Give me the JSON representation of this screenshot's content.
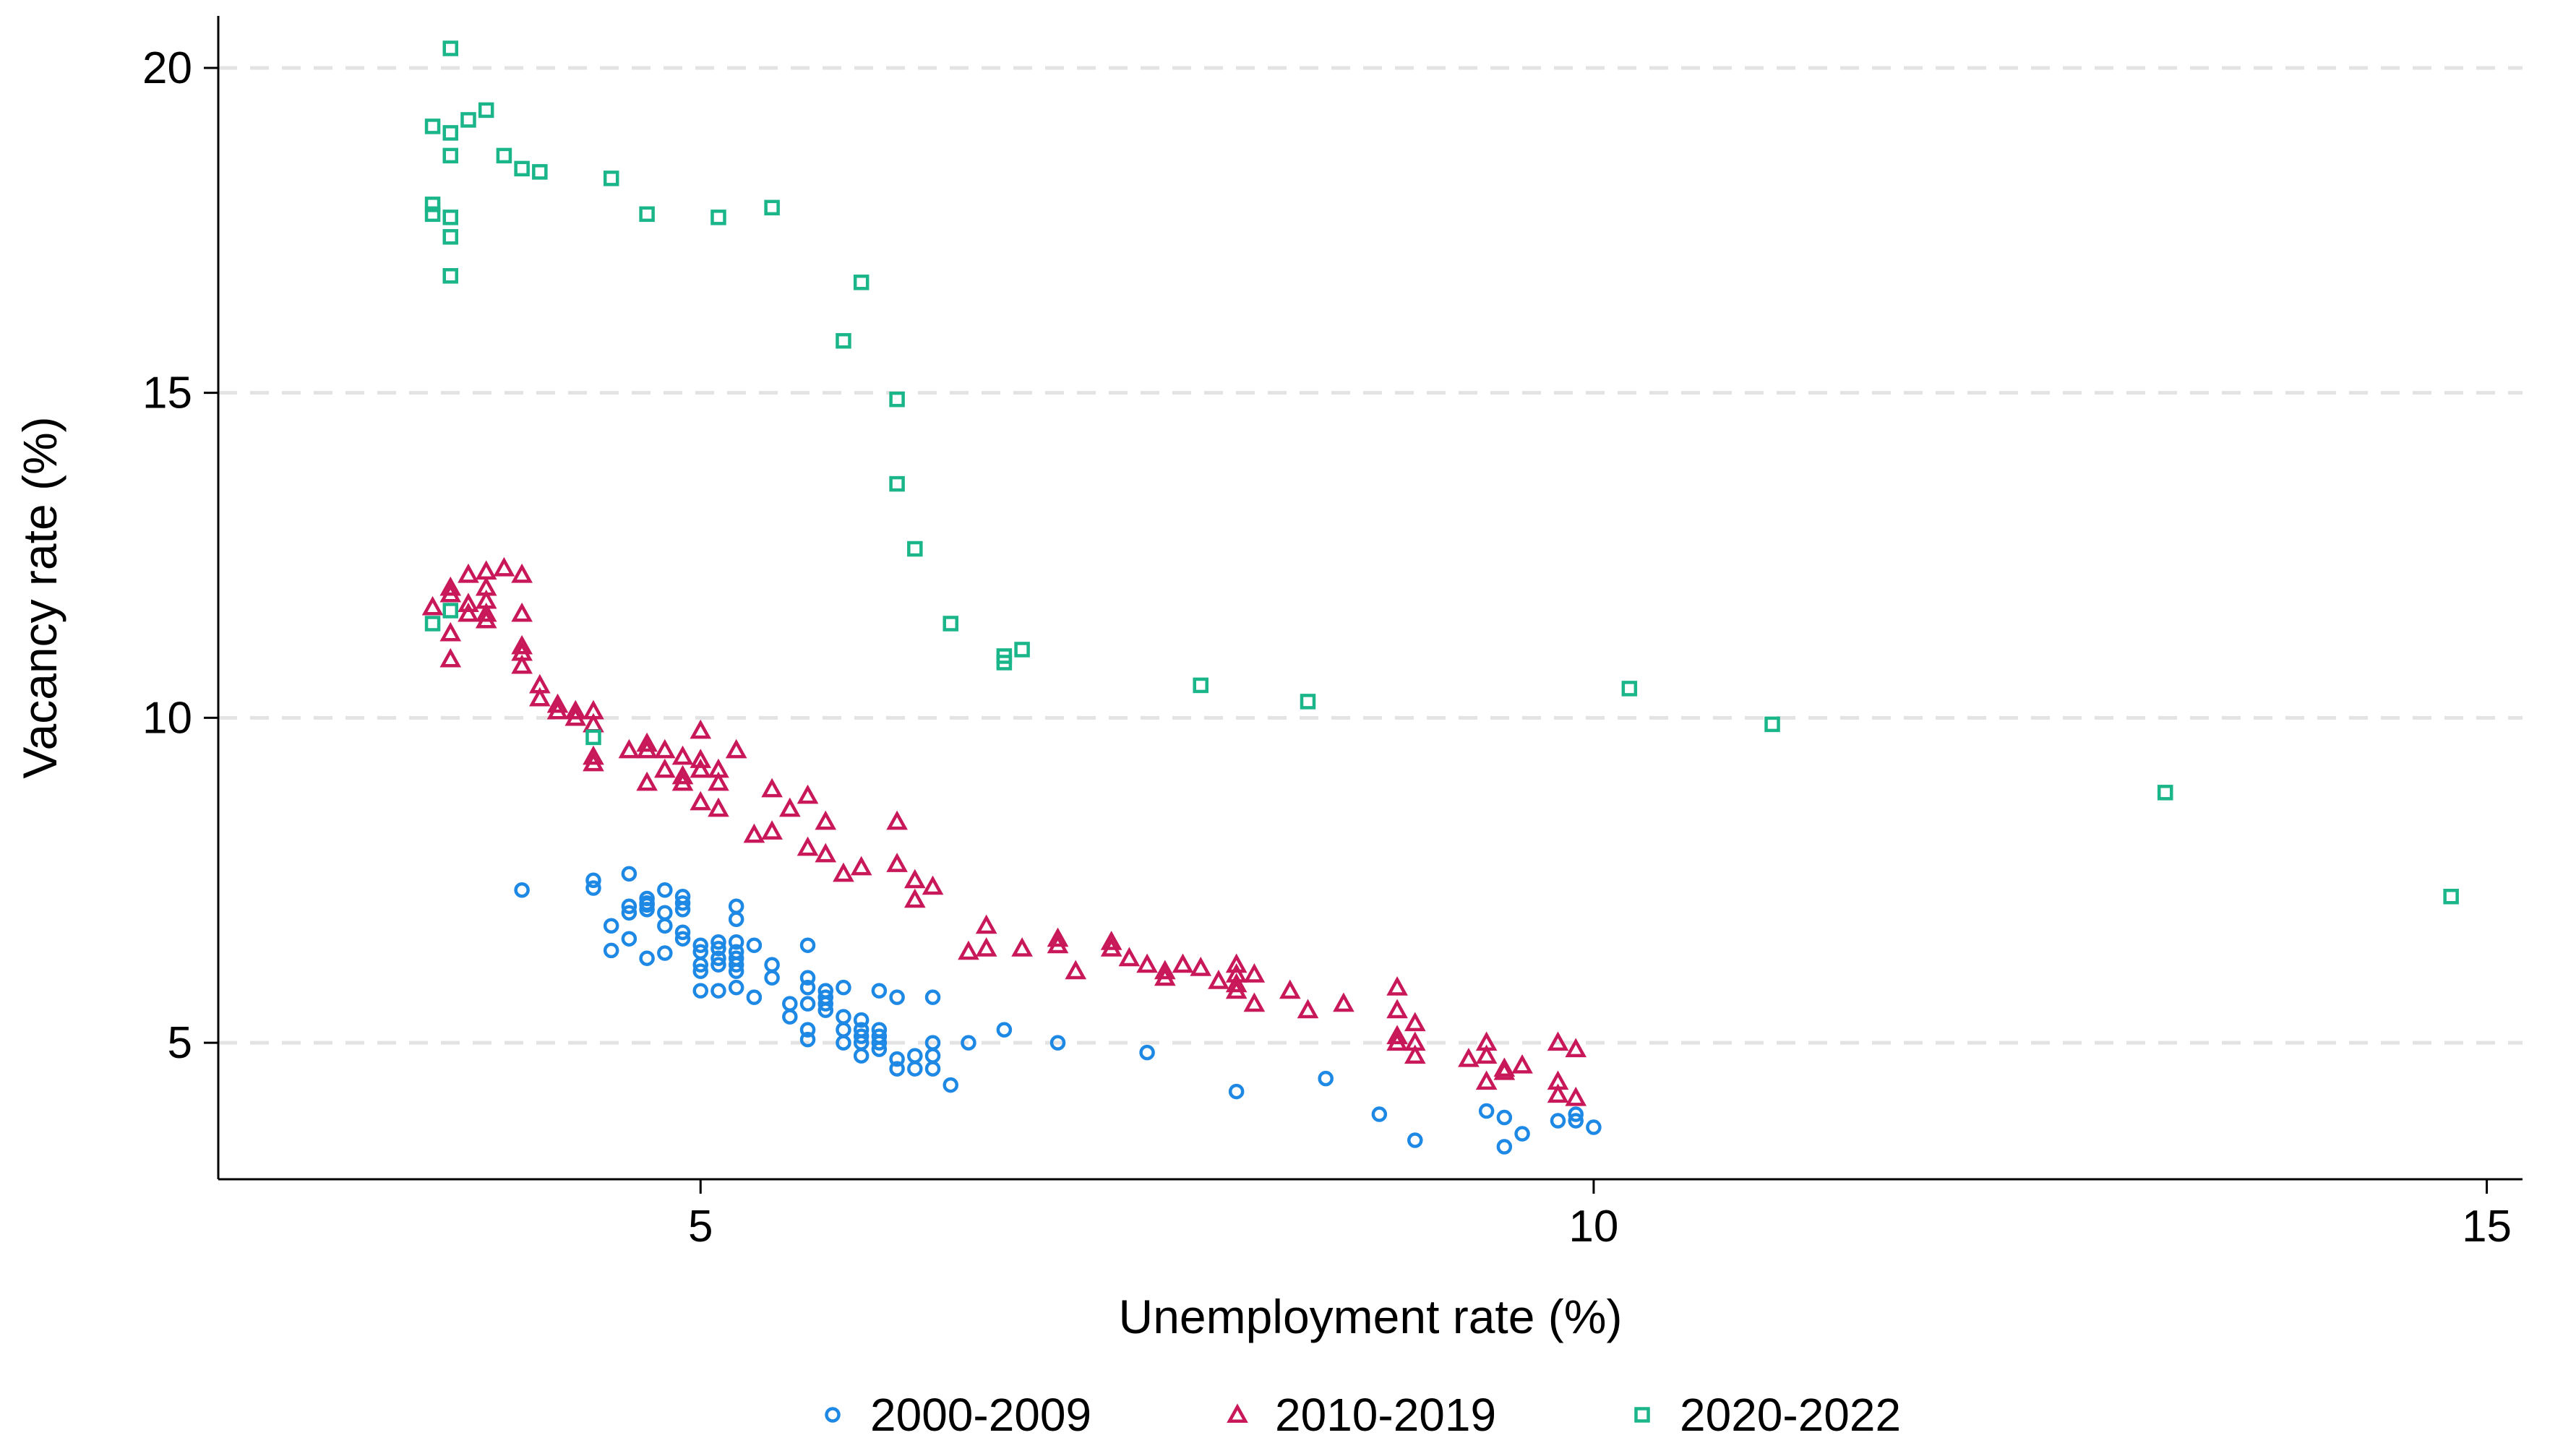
{
  "chart_data": {
    "type": "scatter",
    "xlabel": "Unemployment rate (%)",
    "ylabel": "Vacancy rate (%)",
    "xlim": [
      2.3,
      15.2
    ],
    "ylim": [
      2.9,
      20.8
    ],
    "xticks": [
      5,
      10,
      15
    ],
    "yticks": [
      5,
      10,
      15,
      20
    ],
    "grid": "horizontal dashed",
    "legend_position": "bottom",
    "series": [
      {
        "name": "2000-2009",
        "marker": "circle",
        "color": "#1e88e5",
        "points": [
          [
            4.0,
            7.35
          ],
          [
            4.4,
            7.5
          ],
          [
            4.4,
            7.38
          ],
          [
            4.5,
            6.8
          ],
          [
            4.5,
            6.42
          ],
          [
            4.6,
            7.6
          ],
          [
            4.6,
            7.1
          ],
          [
            4.6,
            7.0
          ],
          [
            4.6,
            6.6
          ],
          [
            4.7,
            7.22
          ],
          [
            4.7,
            7.15
          ],
          [
            4.7,
            7.12
          ],
          [
            4.7,
            7.05
          ],
          [
            4.7,
            6.3
          ],
          [
            4.8,
            7.35
          ],
          [
            4.8,
            7.0
          ],
          [
            4.8,
            6.8
          ],
          [
            4.8,
            6.38
          ],
          [
            4.9,
            7.25
          ],
          [
            4.9,
            7.15
          ],
          [
            4.9,
            7.05
          ],
          [
            4.9,
            6.7
          ],
          [
            4.9,
            6.6
          ],
          [
            5.0,
            6.5
          ],
          [
            5.0,
            6.4
          ],
          [
            5.0,
            6.2
          ],
          [
            5.0,
            6.1
          ],
          [
            5.0,
            5.8
          ],
          [
            5.1,
            6.55
          ],
          [
            5.1,
            6.45
          ],
          [
            5.1,
            6.3
          ],
          [
            5.1,
            6.2
          ],
          [
            5.1,
            5.8
          ],
          [
            5.2,
            7.1
          ],
          [
            5.2,
            6.9
          ],
          [
            5.2,
            6.55
          ],
          [
            5.2,
            6.4
          ],
          [
            5.2,
            6.3
          ],
          [
            5.2,
            6.2
          ],
          [
            5.2,
            6.1
          ],
          [
            5.2,
            5.85
          ],
          [
            5.3,
            6.5
          ],
          [
            5.3,
            5.7
          ],
          [
            5.4,
            6.2
          ],
          [
            5.4,
            6.0
          ],
          [
            5.5,
            5.6
          ],
          [
            5.5,
            5.4
          ],
          [
            5.6,
            6.5
          ],
          [
            5.6,
            6.0
          ],
          [
            5.6,
            5.85
          ],
          [
            5.6,
            5.6
          ],
          [
            5.6,
            5.2
          ],
          [
            5.6,
            5.05
          ],
          [
            5.7,
            5.8
          ],
          [
            5.7,
            5.7
          ],
          [
            5.7,
            5.6
          ],
          [
            5.7,
            5.5
          ],
          [
            5.8,
            5.85
          ],
          [
            5.8,
            5.4
          ],
          [
            5.8,
            5.2
          ],
          [
            5.8,
            5.0
          ],
          [
            5.9,
            5.35
          ],
          [
            5.9,
            5.2
          ],
          [
            5.9,
            5.1
          ],
          [
            5.9,
            5.0
          ],
          [
            5.9,
            4.8
          ],
          [
            6.0,
            5.8
          ],
          [
            6.0,
            5.2
          ],
          [
            6.0,
            5.1
          ],
          [
            6.0,
            5.0
          ],
          [
            6.0,
            4.9
          ],
          [
            6.1,
            5.7
          ],
          [
            6.1,
            4.75
          ],
          [
            6.1,
            4.6
          ],
          [
            6.2,
            4.8
          ],
          [
            6.2,
            4.6
          ],
          [
            6.3,
            5.7
          ],
          [
            6.3,
            5.0
          ],
          [
            6.3,
            4.8
          ],
          [
            6.3,
            4.6
          ],
          [
            6.4,
            4.35
          ],
          [
            6.5,
            5.0
          ],
          [
            6.7,
            5.2
          ],
          [
            7.0,
            5.0
          ],
          [
            7.5,
            4.85
          ],
          [
            8.0,
            4.25
          ],
          [
            8.5,
            4.45
          ],
          [
            8.8,
            3.9
          ],
          [
            9.0,
            3.5
          ],
          [
            9.4,
            3.95
          ],
          [
            9.5,
            3.85
          ],
          [
            9.5,
            3.4
          ],
          [
            9.6,
            3.6
          ],
          [
            9.8,
            3.8
          ],
          [
            9.9,
            3.8
          ],
          [
            9.9,
            3.9
          ],
          [
            10.0,
            3.7
          ]
        ]
      },
      {
        "name": "2010-2019",
        "marker": "triangle",
        "color": "#c8185a",
        "points": [
          [
            3.5,
            11.7
          ],
          [
            3.6,
            12.0
          ],
          [
            3.6,
            11.9
          ],
          [
            3.6,
            11.3
          ],
          [
            3.6,
            10.9
          ],
          [
            3.7,
            12.2
          ],
          [
            3.7,
            11.75
          ],
          [
            3.7,
            11.6
          ],
          [
            3.8,
            12.25
          ],
          [
            3.8,
            12.0
          ],
          [
            3.8,
            11.8
          ],
          [
            3.8,
            11.6
          ],
          [
            3.8,
            11.5
          ],
          [
            3.9,
            12.3
          ],
          [
            4.0,
            12.2
          ],
          [
            4.0,
            11.6
          ],
          [
            4.0,
            11.1
          ],
          [
            4.0,
            11.0
          ],
          [
            4.0,
            10.8
          ],
          [
            4.1,
            10.5
          ],
          [
            4.1,
            10.3
          ],
          [
            4.2,
            10.2
          ],
          [
            4.2,
            10.1
          ],
          [
            4.3,
            10.0
          ],
          [
            4.3,
            10.1
          ],
          [
            4.4,
            10.1
          ],
          [
            4.4,
            9.9
          ],
          [
            4.4,
            9.4
          ],
          [
            4.4,
            9.3
          ],
          [
            4.6,
            9.5
          ],
          [
            4.7,
            9.6
          ],
          [
            4.7,
            9.5
          ],
          [
            4.7,
            9.0
          ],
          [
            4.8,
            9.5
          ],
          [
            4.8,
            9.2
          ],
          [
            4.9,
            9.4
          ],
          [
            4.9,
            9.1
          ],
          [
            4.9,
            9.0
          ],
          [
            5.0,
            9.8
          ],
          [
            5.0,
            9.35
          ],
          [
            5.0,
            9.2
          ],
          [
            5.0,
            8.7
          ],
          [
            5.1,
            9.2
          ],
          [
            5.1,
            9.0
          ],
          [
            5.1,
            8.6
          ],
          [
            5.2,
            9.5
          ],
          [
            5.3,
            8.2
          ],
          [
            5.4,
            8.9
          ],
          [
            5.4,
            8.25
          ],
          [
            5.5,
            8.6
          ],
          [
            5.6,
            8.8
          ],
          [
            5.6,
            8.0
          ],
          [
            5.7,
            8.4
          ],
          [
            5.7,
            7.9
          ],
          [
            5.8,
            7.6
          ],
          [
            5.9,
            7.7
          ],
          [
            6.1,
            8.4
          ],
          [
            6.1,
            7.75
          ],
          [
            6.2,
            7.5
          ],
          [
            6.2,
            7.2
          ],
          [
            6.3,
            7.4
          ],
          [
            6.5,
            6.4
          ],
          [
            6.6,
            6.8
          ],
          [
            6.6,
            6.45
          ],
          [
            6.8,
            6.45
          ],
          [
            7.0,
            6.6
          ],
          [
            7.0,
            6.5
          ],
          [
            7.1,
            6.1
          ],
          [
            7.3,
            6.55
          ],
          [
            7.3,
            6.45
          ],
          [
            7.4,
            6.3
          ],
          [
            7.5,
            6.2
          ],
          [
            7.6,
            6.1
          ],
          [
            7.6,
            6.0
          ],
          [
            7.7,
            6.2
          ],
          [
            7.8,
            6.15
          ],
          [
            7.9,
            5.95
          ],
          [
            8.0,
            6.2
          ],
          [
            8.0,
            6.05
          ],
          [
            8.0,
            5.9
          ],
          [
            8.0,
            5.8
          ],
          [
            8.1,
            6.05
          ],
          [
            8.1,
            5.6
          ],
          [
            8.3,
            5.8
          ],
          [
            8.4,
            5.5
          ],
          [
            8.6,
            5.6
          ],
          [
            8.9,
            5.85
          ],
          [
            8.9,
            5.5
          ],
          [
            8.9,
            5.1
          ],
          [
            8.9,
            5.0
          ],
          [
            9.0,
            5.3
          ],
          [
            9.0,
            5.0
          ],
          [
            9.0,
            4.8
          ],
          [
            9.3,
            4.75
          ],
          [
            9.4,
            5.0
          ],
          [
            9.4,
            4.8
          ],
          [
            9.4,
            4.4
          ],
          [
            9.5,
            4.6
          ],
          [
            9.5,
            4.55
          ],
          [
            9.6,
            4.65
          ],
          [
            9.8,
            5.0
          ],
          [
            9.8,
            4.4
          ],
          [
            9.8,
            4.2
          ],
          [
            9.9,
            4.9
          ],
          [
            9.9,
            4.15
          ]
        ]
      },
      {
        "name": "2020-2022",
        "marker": "square",
        "color": "#1ab589",
        "points": [
          [
            3.5,
            19.1
          ],
          [
            3.5,
            17.9
          ],
          [
            3.5,
            17.75
          ],
          [
            3.5,
            11.45
          ],
          [
            3.6,
            20.3
          ],
          [
            3.6,
            19.0
          ],
          [
            3.6,
            18.65
          ],
          [
            3.6,
            17.7
          ],
          [
            3.6,
            17.4
          ],
          [
            3.6,
            16.8
          ],
          [
            3.6,
            11.65
          ],
          [
            3.7,
            19.2
          ],
          [
            3.8,
            19.35
          ],
          [
            3.9,
            18.65
          ],
          [
            4.0,
            18.45
          ],
          [
            4.1,
            18.4
          ],
          [
            4.4,
            9.7
          ],
          [
            4.5,
            18.3
          ],
          [
            4.7,
            17.75
          ],
          [
            5.1,
            17.7
          ],
          [
            5.4,
            17.85
          ],
          [
            5.8,
            15.8
          ],
          [
            5.9,
            16.7
          ],
          [
            6.1,
            14.9
          ],
          [
            6.1,
            13.6
          ],
          [
            6.2,
            12.6
          ],
          [
            6.4,
            11.45
          ],
          [
            6.7,
            10.95
          ],
          [
            6.7,
            10.85
          ],
          [
            6.8,
            11.05
          ],
          [
            7.8,
            10.5
          ],
          [
            8.4,
            10.25
          ],
          [
            10.2,
            10.45
          ],
          [
            11.0,
            9.9
          ],
          [
            13.2,
            8.85
          ],
          [
            14.8,
            7.25
          ]
        ]
      }
    ]
  }
}
